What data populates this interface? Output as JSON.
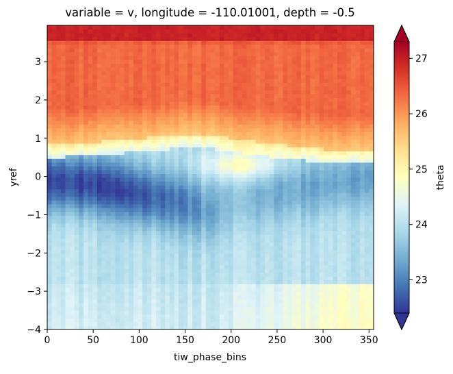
{
  "chart_data": {
    "type": "heatmap",
    "title": "variable = v, longitude = -110.01001, depth = -0.5",
    "xlabel": "tiw_phase_bins",
    "ylabel": "yref",
    "colorbar_label": "theta",
    "xlim": [
      0,
      355
    ],
    "ylim": [
      -4,
      3.95
    ],
    "x_ticks": [
      0,
      50,
      100,
      150,
      200,
      250,
      300,
      350
    ],
    "x_tick_labels": [
      "0",
      "50",
      "100",
      "150",
      "200",
      "250",
      "300",
      "350"
    ],
    "y_ticks": [
      -4,
      -3,
      -2,
      -1,
      0,
      1,
      2,
      3
    ],
    "y_tick_labels": [
      "−4",
      "−3",
      "−2",
      "−1",
      "0",
      "1",
      "2",
      "3"
    ],
    "colorbar": {
      "vmin": 22.4,
      "vmax": 27.3,
      "extend": "both",
      "colormap": "RdYlBu_r",
      "colormap_stops": [
        "#313695",
        "#4575b4",
        "#74add1",
        "#abd9e9",
        "#e0f3f8",
        "#ffffbf",
        "#fee090",
        "#fdae61",
        "#f46d43",
        "#d73027",
        "#a50026"
      ],
      "ticks": [
        23,
        24,
        25,
        26,
        27
      ],
      "tick_labels": [
        "23",
        "24",
        "25",
        "26",
        "27"
      ]
    },
    "field_description": {
      "x_columns": 72,
      "y_rows": 80,
      "column_profile_x": [
        0,
        50,
        100,
        150,
        175,
        200,
        250,
        300,
        355
      ],
      "warm_front_yref": [
        0.85,
        0.9,
        1.0,
        1.1,
        1.1,
        1.0,
        0.85,
        0.72,
        0.7
      ],
      "cold_core_center_yref": [
        -0.1,
        -0.2,
        -0.45,
        -0.7,
        -0.9,
        -0.7,
        -0.4,
        -0.2,
        0.0
      ],
      "cold_core_min_theta": [
        22.5,
        22.5,
        22.6,
        23.0,
        23.3,
        23.6,
        23.4,
        23.3,
        23.3
      ],
      "upper_band_theta_at_4": [
        26.9,
        26.9,
        26.9,
        26.9,
        26.9,
        26.9,
        26.9,
        26.9,
        26.9
      ]
    }
  }
}
